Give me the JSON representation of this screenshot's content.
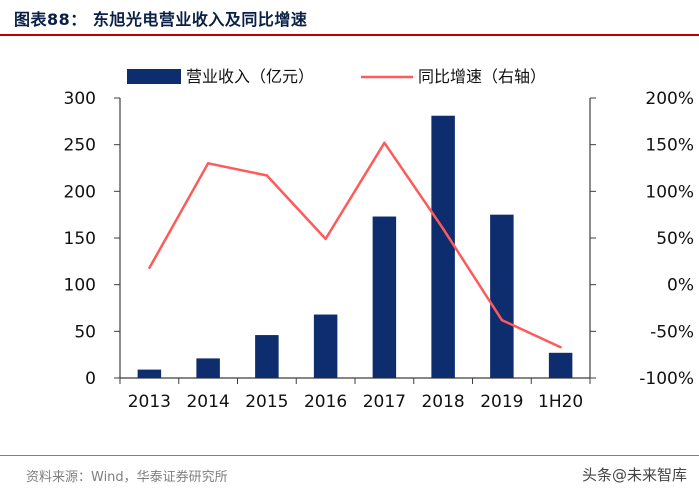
{
  "figure_title": "图表88：  东旭光电营业收入及同比增速",
  "source_note": "资料来源：Wind，华泰证券研究所",
  "watermark": "头条@未来智库",
  "colors": {
    "bar": "#0d2d6e",
    "line": "#ff5a5a",
    "title_rule": "#c00000",
    "text": "#111111"
  },
  "chart_data": {
    "type": "bar",
    "categories": [
      "2013",
      "2014",
      "2015",
      "2016",
      "2017",
      "2018",
      "2019",
      "1H20"
    ],
    "series": [
      {
        "name": "营业收入（亿元）",
        "type": "bar",
        "axis": "left",
        "values": [
          9,
          21,
          46,
          68,
          173,
          281,
          175,
          27
        ]
      },
      {
        "name": "同比增速（右轴）",
        "type": "line",
        "axis": "right",
        "values": [
          18,
          130,
          117,
          49,
          152,
          60,
          -38,
          -67
        ]
      }
    ],
    "y_left": {
      "min": 0,
      "max": 300,
      "ticks": [
        "0",
        "50",
        "100",
        "150",
        "200",
        "250",
        "300"
      ]
    },
    "y_right": {
      "min": -100,
      "max": 200,
      "ticks": [
        "-100%",
        "-50%",
        "0%",
        "50%",
        "100%",
        "150%",
        "200%"
      ]
    },
    "grid": false,
    "legend_position": "top"
  }
}
